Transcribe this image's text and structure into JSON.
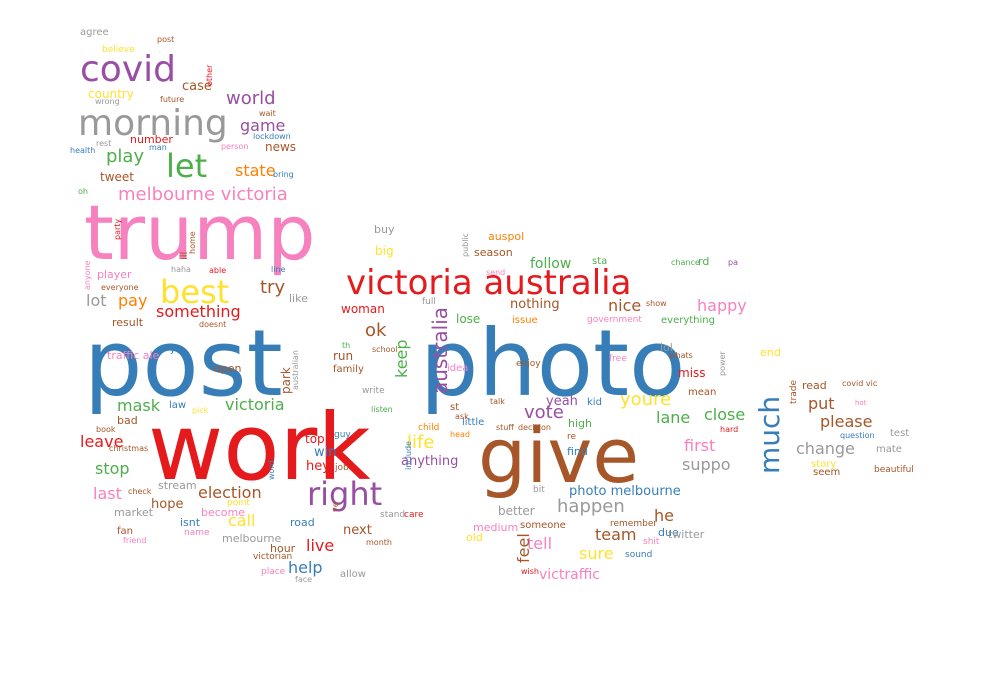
{
  "palette": {
    "red": "#e41a1c",
    "blue": "#377eb8",
    "green": "#4daf4a",
    "purple": "#984ea3",
    "orange": "#ff7f00",
    "yellow": "#ffe12e",
    "brown": "#a65628",
    "pink": "#f781bf",
    "grey": "#999999"
  },
  "words": [
    {
      "text": "post",
      "color": "blue"
    },
    {
      "text": "photo",
      "color": "blue"
    },
    {
      "text": "work",
      "color": "red"
    },
    {
      "text": "trump",
      "color": "pink"
    },
    {
      "text": "give",
      "color": "brown"
    },
    {
      "text": "victoria australia",
      "color": "red"
    },
    {
      "text": "covid",
      "color": "purple"
    },
    {
      "text": "morning",
      "color": "grey"
    },
    {
      "text": "right",
      "color": "purple"
    },
    {
      "text": "much",
      "color": "blue"
    },
    {
      "text": "let",
      "color": "green"
    },
    {
      "text": "best",
      "color": "yellow"
    },
    {
      "text": "australia",
      "color": "purple"
    },
    {
      "text": "melbourne victoria",
      "color": "pink"
    },
    {
      "text": "world",
      "color": "purple"
    },
    {
      "text": "game",
      "color": "purple"
    },
    {
      "text": "play",
      "color": "green"
    },
    {
      "text": "state",
      "color": "orange"
    },
    {
      "text": "news",
      "color": "brown"
    },
    {
      "text": "case",
      "color": "brown"
    },
    {
      "text": "country",
      "color": "yellow"
    },
    {
      "text": "tweet",
      "color": "brown"
    },
    {
      "text": "number",
      "color": "red"
    },
    {
      "text": "try",
      "color": "brown"
    },
    {
      "text": "pay",
      "color": "orange"
    },
    {
      "text": "lot",
      "color": "grey"
    },
    {
      "text": "something",
      "color": "red"
    },
    {
      "text": "ok",
      "color": "brown"
    },
    {
      "text": "woman",
      "color": "red"
    },
    {
      "text": "keep",
      "color": "green"
    },
    {
      "text": "mask",
      "color": "green"
    },
    {
      "text": "victoria",
      "color": "green"
    },
    {
      "text": "leave",
      "color": "red"
    },
    {
      "text": "stop",
      "color": "green"
    },
    {
      "text": "last",
      "color": "pink"
    },
    {
      "text": "election",
      "color": "brown"
    },
    {
      "text": "hope",
      "color": "brown"
    },
    {
      "text": "call",
      "color": "yellow"
    },
    {
      "text": "live",
      "color": "red"
    },
    {
      "text": "help",
      "color": "blue"
    },
    {
      "text": "next",
      "color": "brown"
    },
    {
      "text": "win",
      "color": "blue"
    },
    {
      "text": "run",
      "color": "brown"
    },
    {
      "text": "family",
      "color": "brown"
    },
    {
      "text": "big",
      "color": "yellow"
    },
    {
      "text": "buy",
      "color": "grey"
    },
    {
      "text": "follow",
      "color": "green"
    },
    {
      "text": "nothing",
      "color": "brown"
    },
    {
      "text": "nice",
      "color": "brown"
    },
    {
      "text": "happy",
      "color": "pink"
    },
    {
      "text": "lose",
      "color": "green"
    },
    {
      "text": "issue",
      "color": "orange"
    },
    {
      "text": "vote",
      "color": "purple"
    },
    {
      "text": "yeah",
      "color": "purple"
    },
    {
      "text": "youre",
      "color": "yellow"
    },
    {
      "text": "lane",
      "color": "green"
    },
    {
      "text": "close",
      "color": "green"
    },
    {
      "text": "first",
      "color": "pink"
    },
    {
      "text": "suppo",
      "color": "grey"
    },
    {
      "text": "life",
      "color": "yellow"
    },
    {
      "text": "anything",
      "color": "purple"
    },
    {
      "text": "little",
      "color": "blue"
    },
    {
      "text": "happen",
      "color": "grey"
    },
    {
      "text": "photo melbourne",
      "color": "blue"
    },
    {
      "text": "tell",
      "color": "pink"
    },
    {
      "text": "team",
      "color": "brown"
    },
    {
      "text": "sure",
      "color": "yellow"
    },
    {
      "text": "feel",
      "color": "brown"
    },
    {
      "text": "he",
      "color": "brown"
    },
    {
      "text": "victraffic",
      "color": "pink"
    },
    {
      "text": "put",
      "color": "brown"
    },
    {
      "text": "please",
      "color": "brown"
    },
    {
      "text": "change",
      "color": "grey"
    },
    {
      "text": "mate",
      "color": "grey"
    },
    {
      "text": "read",
      "color": "brown"
    },
    {
      "text": "end",
      "color": "yellow"
    },
    {
      "text": "lol",
      "color": "grey"
    },
    {
      "text": "miss",
      "color": "red"
    },
    {
      "text": "mean",
      "color": "brown"
    },
    {
      "text": "auspol",
      "color": "orange"
    },
    {
      "text": "season",
      "color": "brown"
    },
    {
      "text": "sta",
      "color": "green"
    },
    {
      "text": "rd",
      "color": "green"
    },
    {
      "text": "test",
      "color": "grey"
    },
    {
      "text": "question",
      "color": "blue"
    },
    {
      "text": "agree",
      "color": "grey"
    },
    {
      "text": "believe",
      "color": "yellow"
    },
    {
      "text": "post",
      "color": "brown"
    },
    {
      "text": "wrong",
      "color": "grey"
    },
    {
      "text": "future",
      "color": "brown"
    },
    {
      "text": "other",
      "color": "red"
    },
    {
      "text": "wait",
      "color": "brown"
    },
    {
      "text": "lockdown",
      "color": "blue"
    },
    {
      "text": "rest",
      "color": "grey"
    },
    {
      "text": "health",
      "color": "blue"
    },
    {
      "text": "man",
      "color": "blue"
    },
    {
      "text": "person",
      "color": "pink"
    },
    {
      "text": "bring",
      "color": "blue"
    },
    {
      "text": "oh",
      "color": "green"
    },
    {
      "text": "party",
      "color": "red"
    },
    {
      "text": "ill",
      "color": "brown"
    },
    {
      "text": "home",
      "color": "brown"
    },
    {
      "text": "haha",
      "color": "grey"
    },
    {
      "text": "able",
      "color": "red"
    },
    {
      "text": "line",
      "color": "blue"
    },
    {
      "text": "player",
      "color": "pink"
    },
    {
      "text": "everyone",
      "color": "brown"
    },
    {
      "text": "result",
      "color": "brown"
    },
    {
      "text": "doesnt",
      "color": "brown"
    },
    {
      "text": "like",
      "color": "grey"
    },
    {
      "text": "anyone",
      "color": "pink"
    },
    {
      "text": "traffic ale",
      "color": "pink"
    },
    {
      "text": "ye",
      "color": "blue"
    },
    {
      "text": "open",
      "color": "brown"
    },
    {
      "text": "bad",
      "color": "brown"
    },
    {
      "text": "book",
      "color": "brown"
    },
    {
      "text": "christmas",
      "color": "brown"
    },
    {
      "text": "stream",
      "color": "grey"
    },
    {
      "text": "check",
      "color": "brown"
    },
    {
      "text": "market",
      "color": "grey"
    },
    {
      "text": "fan",
      "color": "brown"
    },
    {
      "text": "friend",
      "color": "pink"
    },
    {
      "text": "isnt",
      "color": "blue"
    },
    {
      "text": "name",
      "color": "pink"
    },
    {
      "text": "become",
      "color": "pink"
    },
    {
      "text": "point",
      "color": "yellow"
    },
    {
      "text": "melbourne",
      "color": "grey"
    },
    {
      "text": "victorian",
      "color": "brown"
    },
    {
      "text": "place",
      "color": "pink"
    },
    {
      "text": "face",
      "color": "grey"
    },
    {
      "text": "allow",
      "color": "grey"
    },
    {
      "text": "hour",
      "color": "brown"
    },
    {
      "text": "road",
      "color": "blue"
    },
    {
      "text": "month",
      "color": "brown"
    },
    {
      "text": "stand",
      "color": "grey"
    },
    {
      "text": "care",
      "color": "red"
    },
    {
      "text": "hey",
      "color": "red"
    },
    {
      "text": "guy",
      "color": "blue"
    },
    {
      "text": "job",
      "color": "brown"
    },
    {
      "text": "top",
      "color": "red"
    },
    {
      "text": "ve",
      "color": "brown"
    },
    {
      "text": "word",
      "color": "blue"
    },
    {
      "text": "include",
      "color": "blue"
    },
    {
      "text": "law",
      "color": "blue"
    },
    {
      "text": "pick",
      "color": "yellow"
    },
    {
      "text": "write",
      "color": "grey"
    },
    {
      "text": "th",
      "color": "green"
    },
    {
      "text": "school",
      "color": "brown"
    },
    {
      "text": "listen",
      "color": "green"
    },
    {
      "text": "park",
      "color": "brown"
    },
    {
      "text": "australian",
      "color": "grey"
    },
    {
      "text": "full",
      "color": "grey"
    },
    {
      "text": "public",
      "color": "grey"
    },
    {
      "text": "idea",
      "color": "pink"
    },
    {
      "text": "st",
      "color": "brown"
    },
    {
      "text": "talk",
      "color": "brown"
    },
    {
      "text": "head",
      "color": "orange"
    },
    {
      "text": "child",
      "color": "orange"
    },
    {
      "text": "ask",
      "color": "brown"
    },
    {
      "text": "stuff",
      "color": "brown"
    },
    {
      "text": "decision",
      "color": "brown"
    },
    {
      "text": "enjoy",
      "color": "brown"
    },
    {
      "text": "high",
      "color": "green"
    },
    {
      "text": "government",
      "color": "pink"
    },
    {
      "text": "everything",
      "color": "green"
    },
    {
      "text": "show",
      "color": "brown"
    },
    {
      "text": "chance",
      "color": "green"
    },
    {
      "text": "pa",
      "color": "purple"
    },
    {
      "text": "free",
      "color": "pink"
    },
    {
      "text": "whats",
      "color": "brown"
    },
    {
      "text": "power",
      "color": "grey"
    },
    {
      "text": "kid",
      "color": "blue"
    },
    {
      "text": "find",
      "color": "blue"
    },
    {
      "text": "re",
      "color": "brown"
    },
    {
      "text": "bit",
      "color": "grey"
    },
    {
      "text": "better",
      "color": "grey"
    },
    {
      "text": "someone",
      "color": "brown"
    },
    {
      "text": "medium",
      "color": "pink"
    },
    {
      "text": "old",
      "color": "yellow"
    },
    {
      "text": "wish",
      "color": "red"
    },
    {
      "text": "due",
      "color": "blue"
    },
    {
      "text": "remember",
      "color": "brown"
    },
    {
      "text": "twitter",
      "color": "grey"
    },
    {
      "text": "shit",
      "color": "pink"
    },
    {
      "text": "sound",
      "color": "blue"
    },
    {
      "text": "hard",
      "color": "red"
    },
    {
      "text": "trade",
      "color": "brown"
    },
    {
      "text": "covid vic",
      "color": "brown"
    },
    {
      "text": "hot",
      "color": "pink"
    },
    {
      "text": "story",
      "color": "yellow"
    },
    {
      "text": "seem",
      "color": "brown"
    },
    {
      "text": "beautiful",
      "color": "brown"
    },
    {
      "text": "send",
      "color": "pink"
    },
    {
      "text": "one",
      "color": "brown"
    }
  ]
}
